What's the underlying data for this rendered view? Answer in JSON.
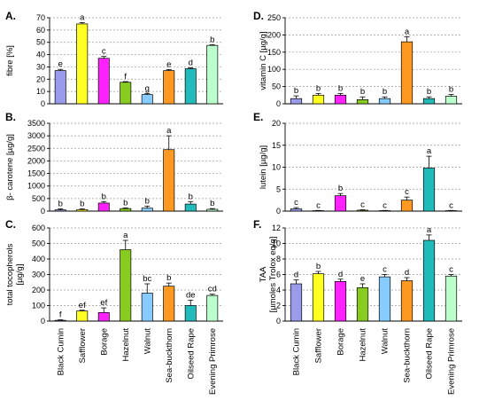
{
  "categories": [
    "Black Cumin",
    "Safflower",
    "Borage",
    "Hazelnut",
    "Walnut",
    "Sea-buckthorn",
    "Oilseed Rape",
    "Evening Primrose"
  ],
  "colors": [
    "#9b9bec",
    "#ffff22",
    "#ff22ff",
    "#88cc22",
    "#88ccff",
    "#ff9922",
    "#22bbbb",
    "#bbffcc"
  ],
  "chart_data": [
    {
      "type": "bar",
      "panel": "A.",
      "title": "",
      "ylabel": "fibre [%]",
      "ylim": [
        0,
        70
      ],
      "yticks": [
        0,
        10,
        20,
        30,
        40,
        50,
        60,
        70
      ],
      "grid": true,
      "values": [
        27,
        65,
        37,
        17.5,
        7.5,
        27,
        28.5,
        47.5
      ],
      "errors": [
        1,
        1,
        1.5,
        0.5,
        0.8,
        0.8,
        0.8,
        0.5
      ],
      "labels": [
        "e",
        "a",
        "c",
        "f",
        "g",
        "e",
        "d",
        "b"
      ]
    },
    {
      "type": "bar",
      "panel": "B.",
      "title": "",
      "ylabel": "β- carotene [µg/g]",
      "ylim": [
        0,
        3500
      ],
      "yticks": [
        0,
        500,
        1000,
        1500,
        2000,
        2500,
        3000,
        3500
      ],
      "grid": true,
      "values": [
        50,
        60,
        320,
        100,
        120,
        2450,
        280,
        70
      ],
      "errors": [
        40,
        30,
        60,
        30,
        80,
        550,
        100,
        30
      ],
      "labels": [
        "b",
        "b",
        "b",
        "b",
        "b",
        "a",
        "b",
        "b"
      ]
    },
    {
      "type": "bar",
      "panel": "C.",
      "title": "",
      "ylabel": "total tocopherols [µg/g]",
      "ylim": [
        0,
        600
      ],
      "yticks": [
        0,
        100,
        200,
        300,
        400,
        500,
        600
      ],
      "grid": true,
      "values": [
        5,
        65,
        55,
        460,
        180,
        225,
        100,
        165
      ],
      "errors": [
        3,
        5,
        30,
        60,
        60,
        20,
        35,
        8
      ],
      "labels": [
        "f",
        "ef",
        "ef",
        "a",
        "bc",
        "b",
        "de",
        "cd"
      ]
    },
    {
      "type": "bar",
      "panel": "D.",
      "title": "",
      "ylabel": "vitamin C [µg/g]",
      "ylim": [
        0,
        250
      ],
      "yticks": [
        0,
        50,
        100,
        150,
        200,
        250
      ],
      "grid": true,
      "values": [
        15,
        25,
        25,
        12,
        15,
        180,
        15,
        22
      ],
      "errors": [
        8,
        5,
        5,
        8,
        5,
        15,
        5,
        5
      ],
      "labels": [
        "b",
        "b",
        "b",
        "b",
        "b",
        "a",
        "b",
        "b"
      ]
    },
    {
      "type": "bar",
      "panel": "E.",
      "title": "",
      "ylabel": "lutein [µg/g]",
      "ylim": [
        0,
        20
      ],
      "yticks": [
        0,
        5,
        10,
        15,
        20
      ],
      "grid": true,
      "values": [
        0.5,
        0.1,
        3.5,
        0.2,
        0.1,
        2.5,
        9.8,
        0.1
      ],
      "errors": [
        0.3,
        0.05,
        0.5,
        0.1,
        0.05,
        0.7,
        2.7,
        0.05
      ],
      "labels": [
        "c",
        "c",
        "b",
        "c",
        "c",
        "c",
        "a",
        "c"
      ]
    },
    {
      "type": "bar",
      "panel": "F.",
      "title": "",
      "ylabel": "TAA [µmoles Trolox eq/g]",
      "ylim": [
        0,
        12
      ],
      "yticks": [
        0,
        2,
        4,
        6,
        8,
        10,
        12
      ],
      "grid": true,
      "values": [
        4.8,
        6.1,
        5.1,
        4.3,
        5.7,
        5.2,
        10.4,
        5.8
      ],
      "errors": [
        0.5,
        0.3,
        0.3,
        0.5,
        0.3,
        0.4,
        0.7,
        0.2
      ],
      "labels": [
        "d",
        "b",
        "d",
        "e",
        "c",
        "d",
        "a",
        "c"
      ]
    }
  ]
}
